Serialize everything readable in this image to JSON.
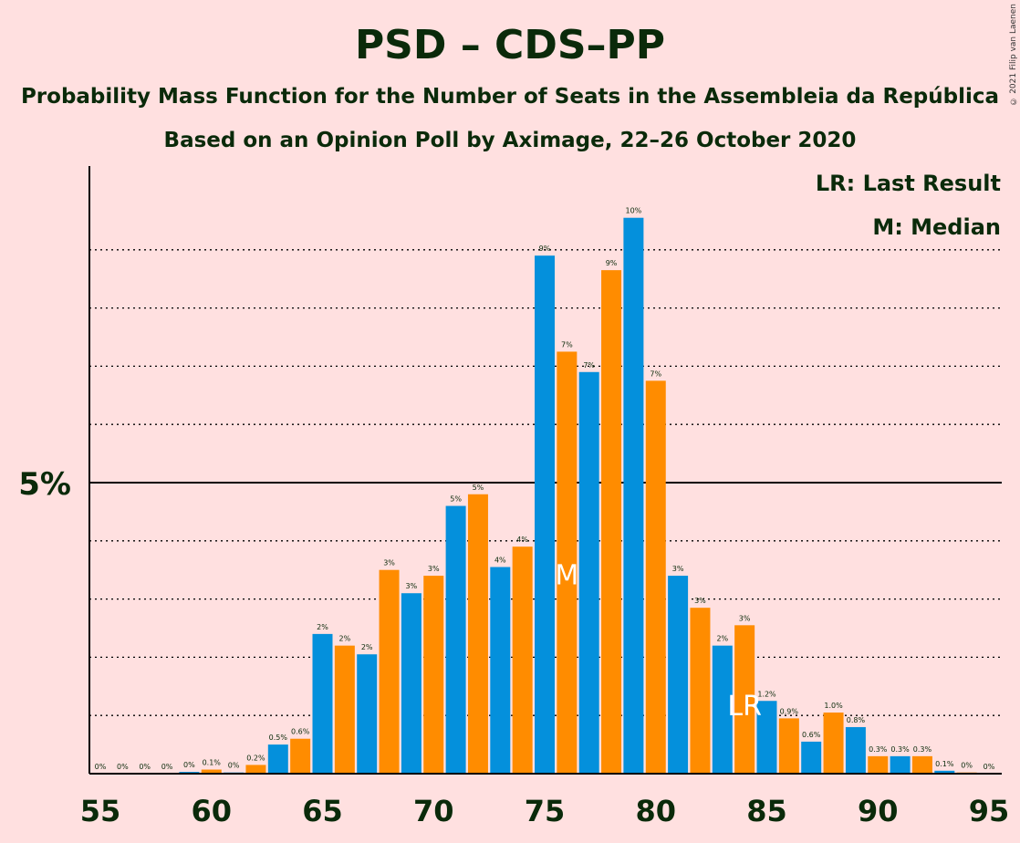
{
  "copyright": "© 2021 Filip van Laenen",
  "chart_data": {
    "type": "bar",
    "title": "PSD – CDS–PP",
    "subtitle": "Probability Mass Function for the Number of Seats in the Assembleia da República",
    "subtitle2": "Based on an Opinion Poll by Aximage, 22–26 October 2020",
    "legend": [
      "LR: Last Result",
      "M: Median"
    ],
    "ytick": "5%",
    "x_ticks": [
      "55",
      "60",
      "65",
      "70",
      "75",
      "80",
      "85",
      "90",
      "95"
    ],
    "x": [
      55,
      56,
      57,
      58,
      59,
      60,
      61,
      62,
      63,
      64,
      65,
      66,
      67,
      68,
      69,
      70,
      71,
      72,
      73,
      74,
      75,
      76,
      77,
      78,
      79,
      80,
      81,
      82,
      83,
      84,
      85,
      86,
      87,
      88,
      89,
      90,
      91,
      92,
      93,
      94,
      95
    ],
    "values": [
      0,
      0,
      0,
      0,
      0.03,
      0.07,
      0.02,
      0.15,
      0.5,
      0.6,
      2.4,
      2.2,
      2.05,
      3.5,
      3.1,
      3.4,
      4.6,
      4.8,
      3.55,
      3.9,
      8.9,
      7.25,
      6.9,
      8.65,
      9.55,
      6.75,
      3.4,
      2.85,
      2.2,
      2.55,
      1.25,
      0.95,
      0.55,
      1.05,
      0.8,
      0.3,
      0.3,
      0.3,
      0.05,
      0.02,
      0
    ],
    "labels": [
      "0%",
      "0%",
      "0%",
      "0%",
      "0%",
      "0.1%",
      "0%",
      "0.2%",
      "0.5%",
      "0.6%",
      "2%",
      "2%",
      "2%",
      "3%",
      "3%",
      "3%",
      "5%",
      "5%",
      "4%",
      "4%",
      "9%",
      "7%",
      "7%",
      "9%",
      "10%",
      "7%",
      "3%",
      "3%",
      "2%",
      "3%",
      "1.2%",
      "0.9%",
      "0.6%",
      "1.0%",
      "0.8%",
      "0.3%",
      "0.3%",
      "0.3%",
      "0.1%",
      "0%",
      "0%"
    ],
    "colors": {
      "blue": "#0490DC",
      "orange": "#FF8C00",
      "background": "#FFE0E0",
      "text": "#0a2a0a"
    },
    "median_seat": 76,
    "median_label": "M",
    "last_result_seat": 84,
    "last_result_label": "LR",
    "ylim": [
      0,
      10.5
    ]
  }
}
